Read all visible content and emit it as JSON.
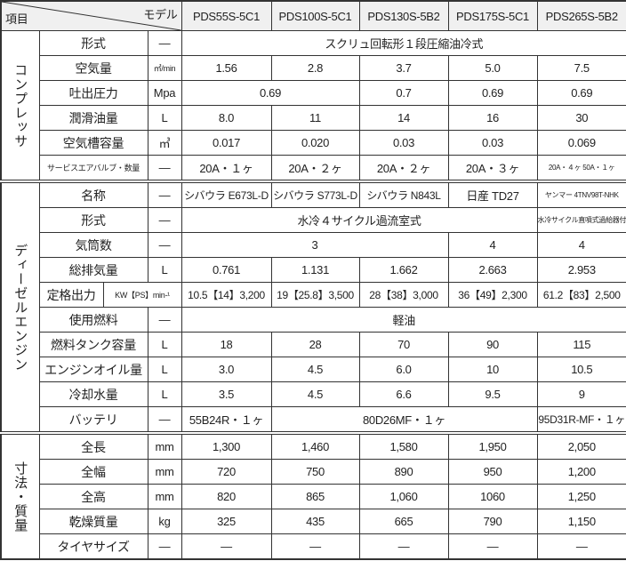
{
  "header": {
    "item_label": "項目",
    "model_label": "モデル",
    "models": [
      "PDS55S-5C1",
      "PDS100S-5C1",
      "PDS130S-5B2",
      "PDS175S-5C1",
      "PDS265S-5B2"
    ]
  },
  "sections": [
    {
      "label": "コンプレッサ",
      "rows": [
        {
          "item": "形式",
          "unit": "—",
          "cells": [
            {
              "v": "スクリュ回転形１段圧縮油冷式",
              "span": 5
            }
          ]
        },
        {
          "item": "空気量",
          "unit": "㎥/min",
          "unit_small": true,
          "cells": [
            {
              "v": "1.56"
            },
            {
              "v": "2.8"
            },
            {
              "v": "3.7"
            },
            {
              "v": "5.0"
            },
            {
              "v": "7.5"
            }
          ]
        },
        {
          "item": "吐出圧力",
          "unit": "Mpa",
          "cells": [
            {
              "v": "0.69",
              "span": 2
            },
            {
              "v": "0.7"
            },
            {
              "v": "0.69"
            },
            {
              "v": "0.69"
            }
          ]
        },
        {
          "item": "潤滑油量",
          "unit": "L",
          "cells": [
            {
              "v": "8.0"
            },
            {
              "v": "11"
            },
            {
              "v": "14"
            },
            {
              "v": "16"
            },
            {
              "v": "30"
            }
          ]
        },
        {
          "item": "空気槽容量",
          "unit": "㎥",
          "cells": [
            {
              "v": "0.017"
            },
            {
              "v": "0.020"
            },
            {
              "v": "0.03"
            },
            {
              "v": "0.03"
            },
            {
              "v": "0.069"
            }
          ]
        },
        {
          "item": "サービスエアバルブ・数量",
          "item_small": true,
          "unit": "—",
          "cells": [
            {
              "v": "20A・１ヶ"
            },
            {
              "v": "20A・２ヶ"
            },
            {
              "v": "20A・２ヶ"
            },
            {
              "v": "20A・３ヶ"
            },
            {
              "v": "20A・４ヶ 50A・１ヶ",
              "cls": "xsmall"
            }
          ]
        }
      ]
    },
    {
      "label": "ディーゼルエンジン",
      "rows": [
        {
          "item": "名称",
          "unit": "—",
          "cells": [
            {
              "v": "シバウラ E673L-D",
              "cls": "sm12"
            },
            {
              "v": "シバウラ S773L-D",
              "cls": "sm12"
            },
            {
              "v": "シバウラ N843L",
              "cls": "sm12"
            },
            {
              "v": "日産 TD27"
            },
            {
              "v": "ヤンマー 4TNV98T-NHK",
              "cls": "xsmall"
            }
          ]
        },
        {
          "item": "形式",
          "unit": "—",
          "cells": [
            {
              "v": "水冷４サイクル過流室式",
              "span": 4
            },
            {
              "v": "水冷サイクル直噴式過給器付",
              "cls": "xsmall"
            }
          ]
        },
        {
          "item": "気筒数",
          "unit": "—",
          "cells": [
            {
              "v": "3",
              "span": 3
            },
            {
              "v": "4"
            },
            {
              "v": "4"
            }
          ]
        },
        {
          "item": "総排気量",
          "unit": "L",
          "cells": [
            {
              "v": "0.761"
            },
            {
              "v": "1.131"
            },
            {
              "v": "1.662"
            },
            {
              "v": "2.663"
            },
            {
              "v": "2.953"
            }
          ]
        },
        {
          "item": "定格出力",
          "unit": "KW【PS】min-¹",
          "wide_unit": true,
          "cells": [
            {
              "v": "10.5【14】3,200",
              "cls": "sm12"
            },
            {
              "v": "19【25.8】3,500",
              "cls": "sm12"
            },
            {
              "v": "28【38】3,000",
              "cls": "sm12"
            },
            {
              "v": "36【49】2,300",
              "cls": "sm12"
            },
            {
              "v": "61.2【83】2,500",
              "cls": "sm12"
            }
          ]
        },
        {
          "item": "使用燃料",
          "unit": "—",
          "cells": [
            {
              "v": "軽油",
              "span": 5
            }
          ]
        },
        {
          "item": "燃料タンク容量",
          "unit": "L",
          "cells": [
            {
              "v": "18"
            },
            {
              "v": "28"
            },
            {
              "v": "70"
            },
            {
              "v": "90"
            },
            {
              "v": "115"
            }
          ]
        },
        {
          "item": "エンジンオイル量",
          "unit": "L",
          "cells": [
            {
              "v": "3.0"
            },
            {
              "v": "4.5"
            },
            {
              "v": "6.0"
            },
            {
              "v": "10"
            },
            {
              "v": "10.5"
            }
          ]
        },
        {
          "item": "冷却水量",
          "unit": "L",
          "cells": [
            {
              "v": "3.5"
            },
            {
              "v": "4.5"
            },
            {
              "v": "6.6"
            },
            {
              "v": "9.5"
            },
            {
              "v": "9"
            }
          ]
        },
        {
          "item": "バッテリ",
          "unit": "—",
          "cells": [
            {
              "v": "55B24R・１ヶ"
            },
            {
              "v": "80D26MF・１ヶ",
              "span": 3
            },
            {
              "v": "95D31R-MF・１ヶ",
              "cls": "sm12"
            }
          ]
        }
      ]
    },
    {
      "label": "寸法・質量",
      "rows": [
        {
          "item": "全長",
          "unit": "mm",
          "cells": [
            {
              "v": "1,300"
            },
            {
              "v": "1,460"
            },
            {
              "v": "1,580"
            },
            {
              "v": "1,950"
            },
            {
              "v": "2,050"
            }
          ]
        },
        {
          "item": "全幅",
          "unit": "mm",
          "cells": [
            {
              "v": "720"
            },
            {
              "v": "750"
            },
            {
              "v": "890"
            },
            {
              "v": "950"
            },
            {
              "v": "1,200"
            }
          ]
        },
        {
          "item": "全高",
          "unit": "mm",
          "cells": [
            {
              "v": "820"
            },
            {
              "v": "865"
            },
            {
              "v": "1,060"
            },
            {
              "v": "1060"
            },
            {
              "v": "1,250"
            }
          ]
        },
        {
          "item": "乾燥質量",
          "unit": "kg",
          "cells": [
            {
              "v": "325"
            },
            {
              "v": "435"
            },
            {
              "v": "665"
            },
            {
              "v": "790"
            },
            {
              "v": "1,150"
            }
          ]
        },
        {
          "item": "タイヤサイズ",
          "unit": "—",
          "cells": [
            {
              "v": "—"
            },
            {
              "v": "—"
            },
            {
              "v": "—"
            },
            {
              "v": "—"
            },
            {
              "v": "—"
            }
          ]
        }
      ]
    }
  ]
}
